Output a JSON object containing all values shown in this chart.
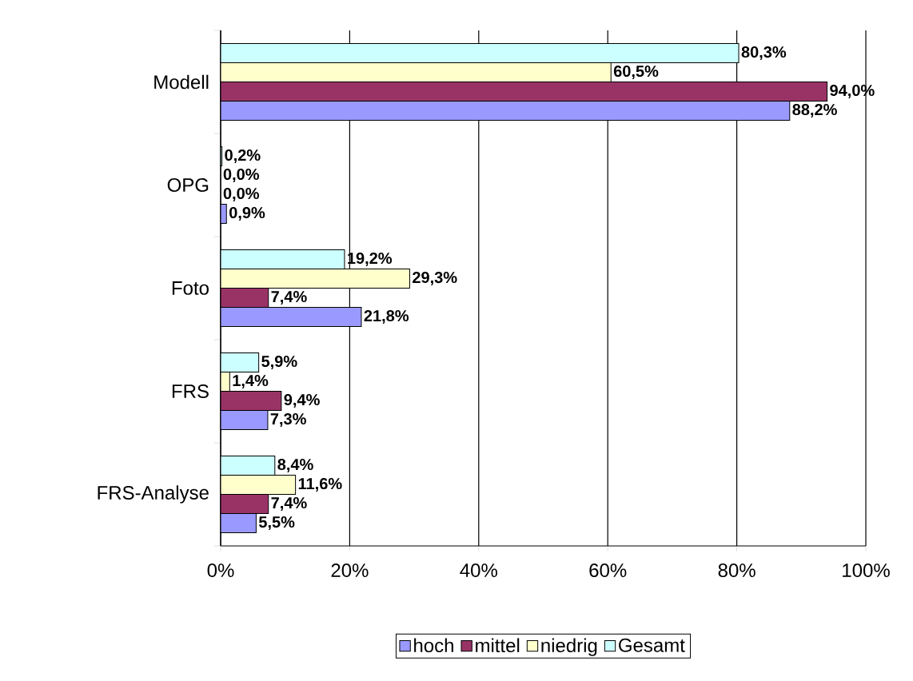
{
  "chart_data": {
    "type": "bar",
    "orientation": "horizontal",
    "categories": [
      "Modell",
      "OPG",
      "Foto",
      "FRS",
      "FRS-Analyse"
    ],
    "series": [
      {
        "name": "hoch",
        "color": "#9999ff",
        "values": [
          88.2,
          0.9,
          21.8,
          7.3,
          5.5
        ],
        "value_labels": [
          "88,2%",
          "0,9%",
          "21,8%",
          "7,3%",
          "5,5%"
        ]
      },
      {
        "name": "mittel",
        "color": "#993366",
        "values": [
          94.0,
          0.0,
          7.4,
          9.4,
          7.4
        ],
        "value_labels": [
          "94,0%",
          "0,0%",
          "7,4%",
          "9,4%",
          "7,4%"
        ]
      },
      {
        "name": "niedrig",
        "color": "#ffffcc",
        "values": [
          60.5,
          0.0,
          29.3,
          1.4,
          11.6
        ],
        "value_labels": [
          "60,5%",
          "0,0%",
          "29,3%",
          "1,4%",
          "11,6%"
        ]
      },
      {
        "name": "Gesamt",
        "color": "#ccffff",
        "values": [
          80.3,
          0.2,
          19.2,
          5.9,
          8.4
        ],
        "value_labels": [
          "80,3%",
          "0,2%",
          "19,2%",
          "5,9%",
          "8,4%"
        ]
      }
    ],
    "xlim": [
      0,
      100
    ],
    "xticks": [
      {
        "value": 0,
        "label": "0%"
      },
      {
        "value": 20,
        "label": "20%"
      },
      {
        "value": 40,
        "label": "40%"
      },
      {
        "value": 60,
        "label": "60%"
      },
      {
        "value": 80,
        "label": "80%"
      },
      {
        "value": 100,
        "label": "100%"
      }
    ],
    "grid": "x",
    "legend": "bottom"
  }
}
